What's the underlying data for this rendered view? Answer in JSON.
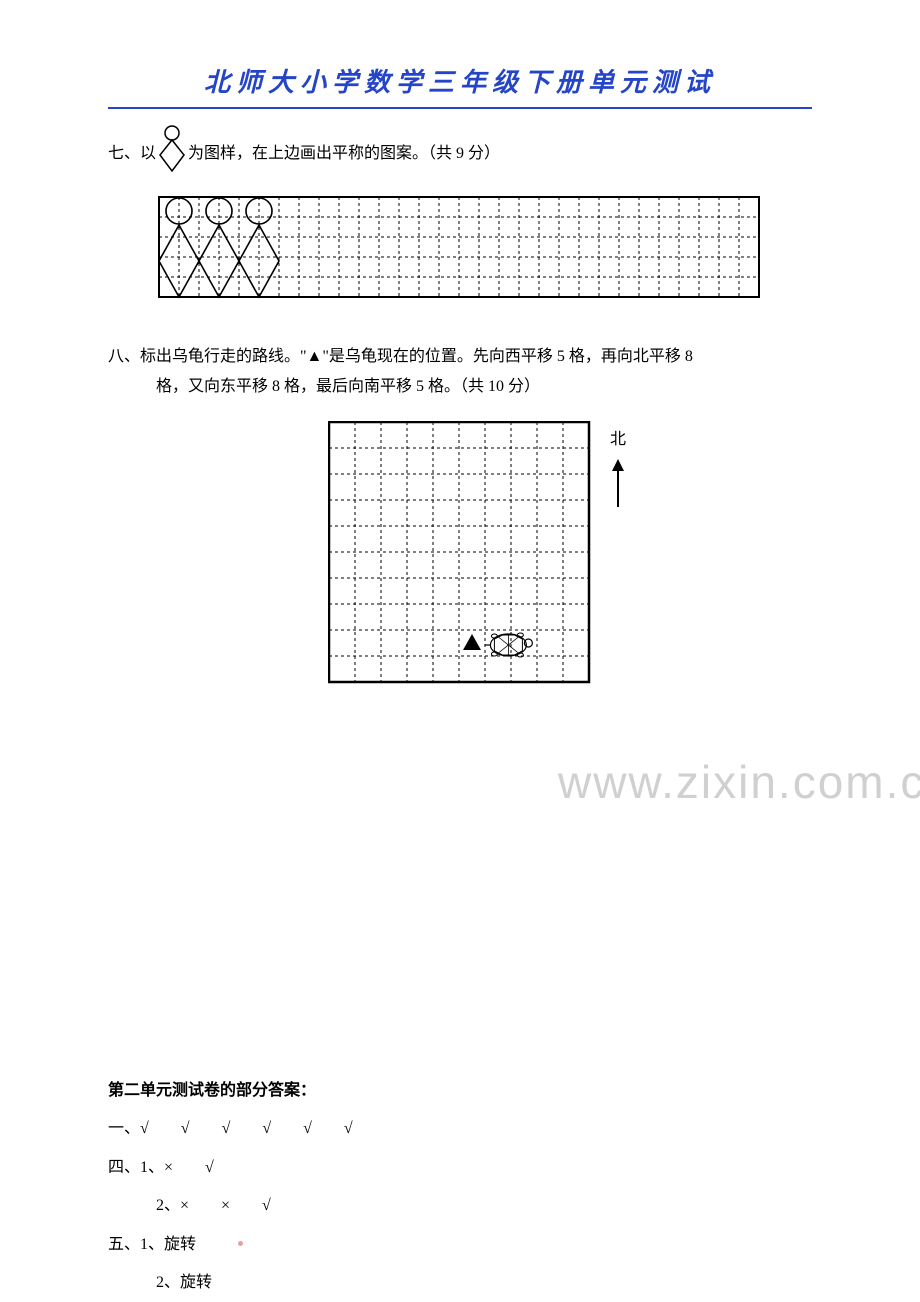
{
  "header": {
    "title": "北师大小学数学三年级下册单元测试",
    "title_color": "#2545c8"
  },
  "question7": {
    "prefix": "七、以",
    "suffix": "为图样，在上边画出平称的图案。（共 9 分）",
    "grid": {
      "cols": 30,
      "rows": 5,
      "cell_size": 20,
      "border_color": "#000000",
      "dash": "3,3",
      "shape_cols": [
        0,
        2,
        4
      ]
    },
    "shape": {
      "circle_r": 7,
      "diamond_w": 20,
      "diamond_h": 24,
      "stroke": "#000000"
    }
  },
  "question8": {
    "line1": "八、标出乌龟行走的路线。\"▲\"是乌龟现在的位置。先向西平移 5 格，再向北平移 8",
    "line2": "格，又向东平移 8 格，最后向南平移 5 格。（共 10 分）",
    "grid": {
      "cols": 10,
      "rows": 10,
      "cell_size": 26,
      "border_color": "#000000",
      "dash": "3,3"
    },
    "north_label": "北",
    "turtle_pos": {
      "col": 5,
      "row": 8
    },
    "watermark": "www.zixin.com.cn"
  },
  "answers": {
    "title": "第二单元测试卷的部分答案：",
    "lines": [
      "一、√　　√　　√　　√　　√　　√",
      "四、1、×　　√",
      "2、×　　×　　√",
      "五、1、旋转",
      "2、旋转"
    ]
  },
  "colors": {
    "text": "#000000",
    "background": "#ffffff",
    "watermark": "rgba(120,120,120,0.35)"
  }
}
